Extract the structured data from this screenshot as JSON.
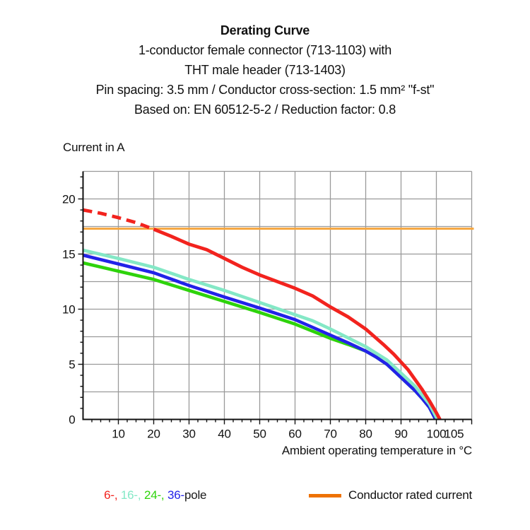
{
  "header": {
    "title": "Derating Curve",
    "subtitle_lines": [
      "1-conductor female connector (713-1103) with",
      "THT male header (713-1403)",
      "Pin spacing: 3.5 mm / Conductor cross-section: 1.5 mm² \"f-st\"",
      "Based on: EN 60512-5-2 / Reduction factor: 0.8"
    ]
  },
  "chart_data": {
    "type": "line",
    "title": "Derating Curve",
    "grid": true,
    "x_axis": {
      "label": "Ambient operating temperature in °C",
      "min": 0,
      "max": 110,
      "gridline_step": 10,
      "major_tick_step": 10,
      "minor_tick_step": 2.5,
      "tick_labels": [
        10,
        20,
        30,
        40,
        50,
        60,
        70,
        80,
        90,
        100,
        105
      ]
    },
    "y_axis": {
      "label": "Current in A",
      "min": 0,
      "max": 22.5,
      "gridline_step": 2.5,
      "major_tick_step": 5,
      "minor_tick_step": 1,
      "tick_labels": [
        0,
        5,
        10,
        15,
        20
      ]
    },
    "rated_current_line": {
      "label": "Conductor rated current",
      "value": 17.3,
      "color": "#f6a63e",
      "width": 3
    },
    "series": [
      {
        "name": "24-pole",
        "color": "#2ed30b",
        "width": 4.6,
        "points": [
          [
            0,
            14.2
          ],
          [
            10,
            13.45
          ],
          [
            20,
            12.7
          ],
          [
            30,
            11.7
          ],
          [
            40,
            10.7
          ],
          [
            50,
            9.7
          ],
          [
            60,
            8.65
          ],
          [
            70,
            7.35
          ],
          [
            75,
            6.8
          ],
          [
            80,
            6.2
          ],
          [
            83,
            5.65
          ],
          [
            86,
            5.0
          ],
          [
            89,
            4.1
          ],
          [
            92,
            3.2
          ],
          [
            94,
            2.6
          ],
          [
            96,
            1.9
          ],
          [
            98,
            1.1
          ],
          [
            99.8,
            0
          ]
        ]
      },
      {
        "name": "36-pole",
        "color": "#2222e8",
        "width": 4.6,
        "points": [
          [
            0,
            14.9
          ],
          [
            10,
            14.1
          ],
          [
            20,
            13.3
          ],
          [
            30,
            12.15
          ],
          [
            40,
            11.1
          ],
          [
            50,
            10.1
          ],
          [
            60,
            9.05
          ],
          [
            70,
            7.65
          ],
          [
            75,
            6.95
          ],
          [
            80,
            6.2
          ],
          [
            83,
            5.65
          ],
          [
            86,
            5.0
          ],
          [
            89,
            4.1
          ],
          [
            92,
            3.2
          ],
          [
            94,
            2.6
          ],
          [
            96,
            1.9
          ],
          [
            98,
            1.1
          ],
          [
            99.8,
            0
          ]
        ]
      },
      {
        "name": "16-pole",
        "color": "#84e8c6",
        "width": 4.6,
        "points": [
          [
            0,
            15.35
          ],
          [
            10,
            14.6
          ],
          [
            20,
            13.8
          ],
          [
            30,
            12.7
          ],
          [
            40,
            11.7
          ],
          [
            50,
            10.6
          ],
          [
            60,
            9.5
          ],
          [
            65,
            8.95
          ],
          [
            70,
            8.2
          ],
          [
            75,
            7.4
          ],
          [
            80,
            6.6
          ],
          [
            83,
            6.0
          ],
          [
            86,
            5.4
          ],
          [
            89,
            4.5
          ],
          [
            92,
            3.6
          ],
          [
            94,
            3.0
          ],
          [
            96,
            2.2
          ],
          [
            98,
            1.4
          ],
          [
            100.3,
            0
          ]
        ]
      },
      {
        "name": "6-pole",
        "color": "#f2231e",
        "width": 4.8,
        "dashed_points": [
          [
            0,
            19
          ],
          [
            5,
            18.7
          ],
          [
            10,
            18.3
          ],
          [
            15,
            17.85
          ],
          [
            20,
            17.25
          ]
        ],
        "dash_pattern": "13 8",
        "points": [
          [
            20,
            17.25
          ],
          [
            25,
            16.6
          ],
          [
            30,
            15.9
          ],
          [
            35,
            15.4
          ],
          [
            40,
            14.6
          ],
          [
            45,
            13.8
          ],
          [
            50,
            13.1
          ],
          [
            55,
            12.5
          ],
          [
            60,
            11.9
          ],
          [
            65,
            11.2
          ],
          [
            70,
            10.2
          ],
          [
            75,
            9.3
          ],
          [
            80,
            8.2
          ],
          [
            85,
            6.8
          ],
          [
            88,
            5.9
          ],
          [
            90,
            5.2
          ],
          [
            92,
            4.5
          ],
          [
            94,
            3.6
          ],
          [
            96,
            2.7
          ],
          [
            98,
            1.7
          ],
          [
            100,
            0.6
          ],
          [
            101,
            0
          ]
        ]
      }
    ],
    "plot_style": {
      "gridline_color": "#9a9a9a",
      "axis_color": "#111111",
      "label_color": "#111111",
      "tick_label_font_size": 17
    }
  },
  "legend": {
    "pole_items": [
      {
        "label": "6-, ",
        "color": "#f2231e"
      },
      {
        "label": "16-, ",
        "color": "#84e8c6"
      },
      {
        "label": "24-, ",
        "color": "#2ed30b"
      },
      {
        "label": "36-",
        "color": "#2222e8"
      },
      {
        "label": "pole",
        "color": "#1a1a1a"
      }
    ],
    "rated_label": "Conductor rated current",
    "rated_swatch_color": "#ee7203"
  }
}
